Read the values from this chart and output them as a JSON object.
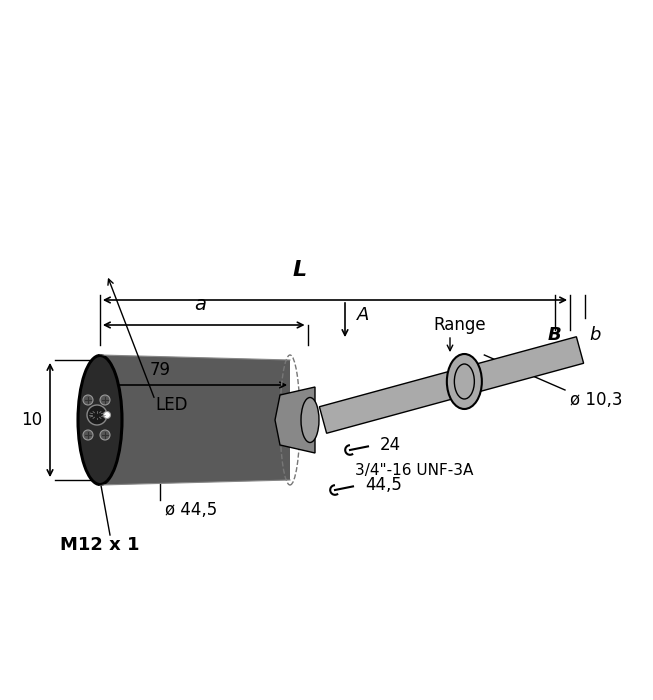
{
  "bg_color": "#ffffff",
  "body_color": "#5a5a5a",
  "body_dark": "#3a3a3a",
  "rod_color": "#aaaaaa",
  "rod_dark": "#888888",
  "nut_color": "#888888",
  "line_color": "#000000",
  "dim_color": "#000000",
  "labels": {
    "L": "L",
    "a": "a",
    "A": "A",
    "B": "B",
    "b": "b",
    "Range": "Range",
    "dim_79": "79",
    "dim_10": "10",
    "LED": "LED",
    "phi_44": "ø 44,5",
    "M12": "M12 x 1",
    "phi_10": "ø 10,3",
    "wrench_24": "24",
    "thread": "3/4\"-16 UNF-3A",
    "wrench_44": "44,5"
  },
  "font_size_large": 14,
  "font_size_medium": 12,
  "font_size_small": 11
}
